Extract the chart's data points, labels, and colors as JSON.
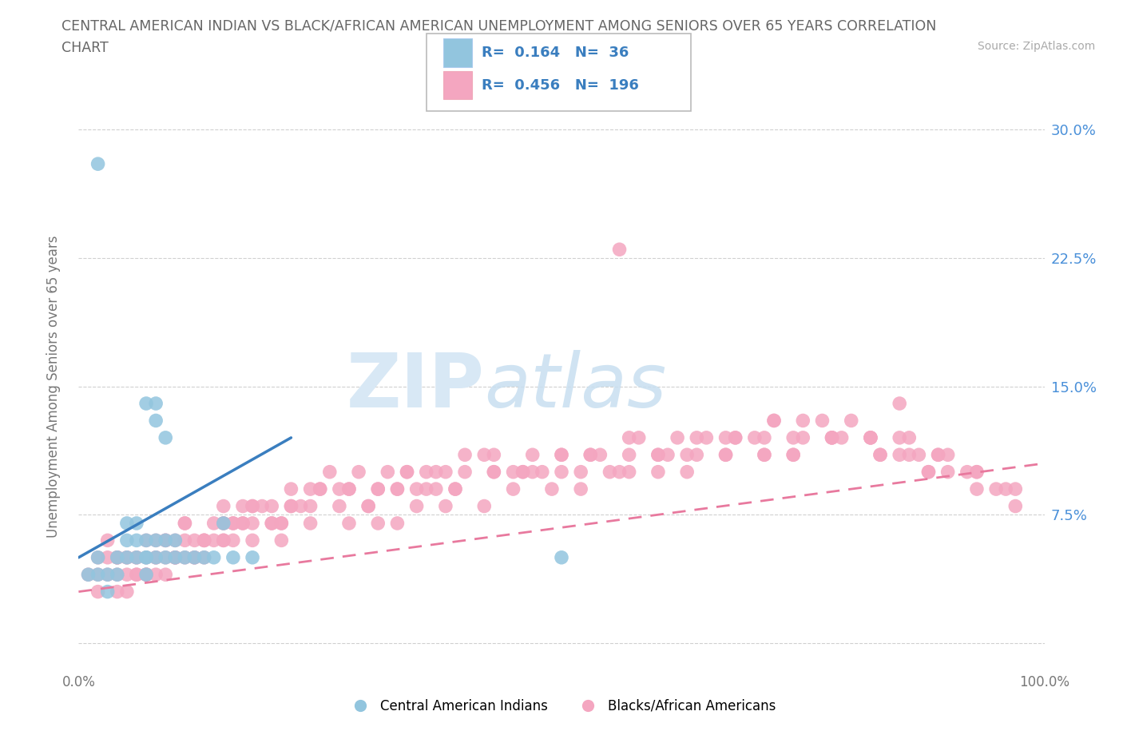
{
  "title_line1": "CENTRAL AMERICAN INDIAN VS BLACK/AFRICAN AMERICAN UNEMPLOYMENT AMONG SENIORS OVER 65 YEARS CORRELATION",
  "title_line2": "CHART",
  "source": "Source: ZipAtlas.com",
  "ylabel": "Unemployment Among Seniors over 65 years",
  "xmin": 0.0,
  "xmax": 1.0,
  "ymin": -0.015,
  "ymax": 0.315,
  "yticks": [
    0.0,
    0.075,
    0.15,
    0.225,
    0.3
  ],
  "ytick_labels_right": [
    "7.5%",
    "15.0%",
    "22.5%",
    "30.0%"
  ],
  "ytick_labels_right_vals": [
    0.075,
    0.15,
    0.225,
    0.3
  ],
  "xtick_left_label": "0.0%",
  "xtick_right_label": "100.0%",
  "legend_r1": "0.164",
  "legend_n1": "36",
  "legend_r2": "0.456",
  "legend_n2": "196",
  "color_blue": "#92c5de",
  "color_pink": "#f4a6c0",
  "line_blue_color": "#3a7ebf",
  "line_pink_color": "#e8799e",
  "watermark_zip": "ZIP",
  "watermark_atlas": "atlas",
  "background_color": "#ffffff",
  "grid_color": "#d0d0d0",
  "title_color": "#666666",
  "right_axis_color": "#4a90d9",
  "legend_text_color": "#3a7ebf",
  "blue_x": [
    0.01,
    0.02,
    0.02,
    0.03,
    0.03,
    0.04,
    0.04,
    0.05,
    0.05,
    0.05,
    0.06,
    0.06,
    0.06,
    0.07,
    0.07,
    0.07,
    0.07,
    0.08,
    0.08,
    0.08,
    0.08,
    0.09,
    0.09,
    0.09,
    0.1,
    0.1,
    0.11,
    0.12,
    0.13,
    0.14,
    0.15,
    0.16,
    0.18,
    0.5,
    0.02,
    0.07
  ],
  "blue_y": [
    0.04,
    0.04,
    0.05,
    0.03,
    0.04,
    0.05,
    0.04,
    0.06,
    0.05,
    0.07,
    0.05,
    0.06,
    0.07,
    0.04,
    0.05,
    0.06,
    0.14,
    0.05,
    0.06,
    0.13,
    0.14,
    0.05,
    0.06,
    0.12,
    0.05,
    0.06,
    0.05,
    0.05,
    0.05,
    0.05,
    0.07,
    0.05,
    0.05,
    0.05,
    0.28,
    0.05
  ],
  "pink_x": [
    0.01,
    0.02,
    0.02,
    0.03,
    0.03,
    0.04,
    0.04,
    0.04,
    0.05,
    0.05,
    0.05,
    0.06,
    0.06,
    0.06,
    0.07,
    0.07,
    0.07,
    0.08,
    0.08,
    0.08,
    0.09,
    0.09,
    0.09,
    0.1,
    0.1,
    0.1,
    0.11,
    0.11,
    0.12,
    0.12,
    0.13,
    0.13,
    0.14,
    0.14,
    0.15,
    0.15,
    0.16,
    0.16,
    0.17,
    0.17,
    0.18,
    0.18,
    0.19,
    0.2,
    0.2,
    0.21,
    0.22,
    0.22,
    0.23,
    0.24,
    0.25,
    0.26,
    0.27,
    0.28,
    0.29,
    0.3,
    0.31,
    0.32,
    0.33,
    0.34,
    0.35,
    0.36,
    0.37,
    0.38,
    0.39,
    0.4,
    0.42,
    0.43,
    0.45,
    0.47,
    0.48,
    0.5,
    0.52,
    0.53,
    0.55,
    0.57,
    0.58,
    0.6,
    0.62,
    0.63,
    0.65,
    0.67,
    0.68,
    0.7,
    0.72,
    0.74,
    0.75,
    0.77,
    0.78,
    0.8,
    0.82,
    0.83,
    0.85,
    0.87,
    0.88,
    0.9,
    0.92,
    0.93,
    0.95,
    0.97,
    0.03,
    0.05,
    0.07,
    0.09,
    0.11,
    0.13,
    0.15,
    0.17,
    0.2,
    0.22,
    0.25,
    0.28,
    0.31,
    0.34,
    0.37,
    0.4,
    0.43,
    0.47,
    0.5,
    0.54,
    0.57,
    0.61,
    0.64,
    0.68,
    0.71,
    0.75,
    0.79,
    0.83,
    0.86,
    0.9,
    0.04,
    0.06,
    0.08,
    0.11,
    0.13,
    0.16,
    0.18,
    0.21,
    0.24,
    0.27,
    0.3,
    0.33,
    0.36,
    0.39,
    0.43,
    0.46,
    0.5,
    0.53,
    0.57,
    0.6,
    0.64,
    0.67,
    0.71,
    0.74,
    0.78,
    0.82,
    0.85,
    0.89,
    0.93,
    0.96,
    0.02,
    0.04,
    0.07,
    0.1,
    0.12,
    0.15,
    0.18,
    0.21,
    0.24,
    0.28,
    0.31,
    0.35,
    0.38,
    0.42,
    0.45,
    0.49,
    0.52,
    0.56,
    0.6,
    0.63,
    0.67,
    0.71,
    0.74,
    0.78,
    0.82,
    0.86,
    0.89,
    0.93,
    0.97,
    0.85,
    0.56,
    0.33,
    0.46,
    0.72,
    0.88,
    0.15
  ],
  "pink_y": [
    0.04,
    0.05,
    0.03,
    0.04,
    0.05,
    0.04,
    0.03,
    0.05,
    0.04,
    0.05,
    0.03,
    0.04,
    0.05,
    0.04,
    0.04,
    0.05,
    0.04,
    0.05,
    0.04,
    0.05,
    0.05,
    0.06,
    0.04,
    0.05,
    0.06,
    0.05,
    0.06,
    0.05,
    0.06,
    0.05,
    0.06,
    0.05,
    0.06,
    0.07,
    0.06,
    0.07,
    0.07,
    0.06,
    0.07,
    0.08,
    0.07,
    0.08,
    0.08,
    0.07,
    0.08,
    0.07,
    0.08,
    0.09,
    0.08,
    0.09,
    0.09,
    0.1,
    0.09,
    0.09,
    0.1,
    0.08,
    0.09,
    0.1,
    0.09,
    0.1,
    0.09,
    0.1,
    0.09,
    0.1,
    0.09,
    0.1,
    0.11,
    0.1,
    0.1,
    0.11,
    0.1,
    0.11,
    0.1,
    0.11,
    0.1,
    0.11,
    0.12,
    0.11,
    0.12,
    0.11,
    0.12,
    0.11,
    0.12,
    0.12,
    0.13,
    0.11,
    0.12,
    0.13,
    0.12,
    0.13,
    0.12,
    0.11,
    0.12,
    0.11,
    0.1,
    0.11,
    0.1,
    0.09,
    0.09,
    0.08,
    0.06,
    0.05,
    0.06,
    0.06,
    0.07,
    0.06,
    0.07,
    0.07,
    0.07,
    0.08,
    0.09,
    0.09,
    0.09,
    0.1,
    0.1,
    0.11,
    0.11,
    0.1,
    0.11,
    0.11,
    0.12,
    0.11,
    0.12,
    0.12,
    0.12,
    0.13,
    0.12,
    0.11,
    0.11,
    0.1,
    0.05,
    0.05,
    0.06,
    0.07,
    0.06,
    0.07,
    0.08,
    0.07,
    0.08,
    0.08,
    0.08,
    0.09,
    0.09,
    0.09,
    0.1,
    0.1,
    0.1,
    0.11,
    0.1,
    0.11,
    0.11,
    0.12,
    0.11,
    0.12,
    0.12,
    0.12,
    0.11,
    0.11,
    0.1,
    0.09,
    0.04,
    0.05,
    0.04,
    0.05,
    0.05,
    0.06,
    0.06,
    0.06,
    0.07,
    0.07,
    0.07,
    0.08,
    0.08,
    0.08,
    0.09,
    0.09,
    0.09,
    0.1,
    0.1,
    0.1,
    0.11,
    0.11,
    0.11,
    0.12,
    0.12,
    0.12,
    0.11,
    0.1,
    0.09,
    0.14,
    0.23,
    0.07,
    0.1,
    0.13,
    0.1,
    0.08
  ],
  "blue_line_x0": 0.0,
  "blue_line_x1": 0.22,
  "blue_line_y0": 0.05,
  "blue_line_y1": 0.12,
  "pink_line_x0": 0.0,
  "pink_line_x1": 1.0,
  "pink_line_y0": 0.03,
  "pink_line_y1": 0.105
}
